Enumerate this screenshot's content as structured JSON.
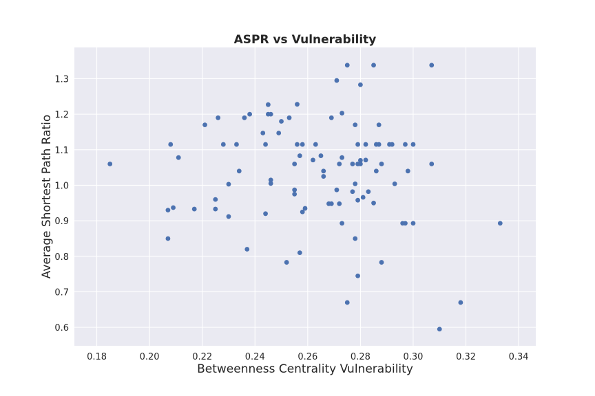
{
  "chart_data": {
    "type": "scatter",
    "title": "ASPR vs Vulnerability",
    "xlabel": "Betweenness Centrality Vulnerability",
    "ylabel": "Average Shortest Path Ratio",
    "xlim": [
      0.1715,
      0.3465
    ],
    "ylim": [
      0.548,
      1.388
    ],
    "xticks": [
      0.18,
      0.2,
      0.22,
      0.24,
      0.26,
      0.28,
      0.3,
      0.32,
      0.34
    ],
    "xtick_labels": [
      "0.18",
      "0.20",
      "0.22",
      "0.24",
      "0.26",
      "0.28",
      "0.30",
      "0.32",
      "0.34"
    ],
    "yticks": [
      0.6,
      0.7,
      0.8,
      0.9,
      1.0,
      1.1,
      1.2,
      1.3
    ],
    "ytick_labels": [
      "0.6",
      "0.7",
      "0.8",
      "0.9",
      "1.0",
      "1.1",
      "1.2",
      "1.3"
    ],
    "grid": true,
    "background": "#eaeaf2",
    "point_color": "#4c72b0",
    "x": [
      0.185,
      0.207,
      0.207,
      0.208,
      0.209,
      0.211,
      0.217,
      0.221,
      0.225,
      0.225,
      0.226,
      0.228,
      0.23,
      0.23,
      0.233,
      0.234,
      0.236,
      0.237,
      0.238,
      0.243,
      0.244,
      0.244,
      0.245,
      0.245,
      0.246,
      0.246,
      0.246,
      0.249,
      0.25,
      0.252,
      0.253,
      0.255,
      0.255,
      0.255,
      0.256,
      0.256,
      0.257,
      0.257,
      0.258,
      0.258,
      0.259,
      0.262,
      0.263,
      0.265,
      0.266,
      0.266,
      0.268,
      0.269,
      0.269,
      0.271,
      0.271,
      0.272,
      0.272,
      0.273,
      0.273,
      0.273,
      0.275,
      0.275,
      0.277,
      0.277,
      0.278,
      0.278,
      0.278,
      0.279,
      0.279,
      0.279,
      0.279,
      0.28,
      0.28,
      0.28,
      0.281,
      0.282,
      0.282,
      0.283,
      0.285,
      0.285,
      0.286,
      0.286,
      0.287,
      0.287,
      0.288,
      0.288,
      0.291,
      0.292,
      0.293,
      0.296,
      0.297,
      0.297,
      0.298,
      0.3,
      0.3,
      0.307,
      0.307,
      0.31,
      0.318,
      0.333
    ],
    "y": [
      1.06,
      0.85,
      0.93,
      1.115,
      0.937,
      1.078,
      0.933,
      1.17,
      0.96,
      0.933,
      1.19,
      1.115,
      0.912,
      1.003,
      1.115,
      1.04,
      1.19,
      0.82,
      1.2,
      1.147,
      1.115,
      0.92,
      1.2,
      1.227,
      1.2,
      1.015,
      1.005,
      1.147,
      1.18,
      0.783,
      1.19,
      1.06,
      0.975,
      0.987,
      1.228,
      1.115,
      1.083,
      0.81,
      1.115,
      0.925,
      0.935,
      1.071,
      1.115,
      1.083,
      1.04,
      1.025,
      0.948,
      1.19,
      0.948,
      0.987,
      1.295,
      1.06,
      0.948,
      1.203,
      1.078,
      0.893,
      0.67,
      1.338,
      0.982,
      1.06,
      1.004,
      1.17,
      0.85,
      1.115,
      1.06,
      0.958,
      0.745,
      1.283,
      1.07,
      1.06,
      0.966,
      1.115,
      1.071,
      0.982,
      1.338,
      0.95,
      1.04,
      1.115,
      1.115,
      1.17,
      1.06,
      0.783,
      1.115,
      1.115,
      1.004,
      0.893,
      0.893,
      1.115,
      1.04,
      1.115,
      0.893,
      1.338,
      1.06,
      0.595,
      0.67,
      0.893
    ]
  }
}
